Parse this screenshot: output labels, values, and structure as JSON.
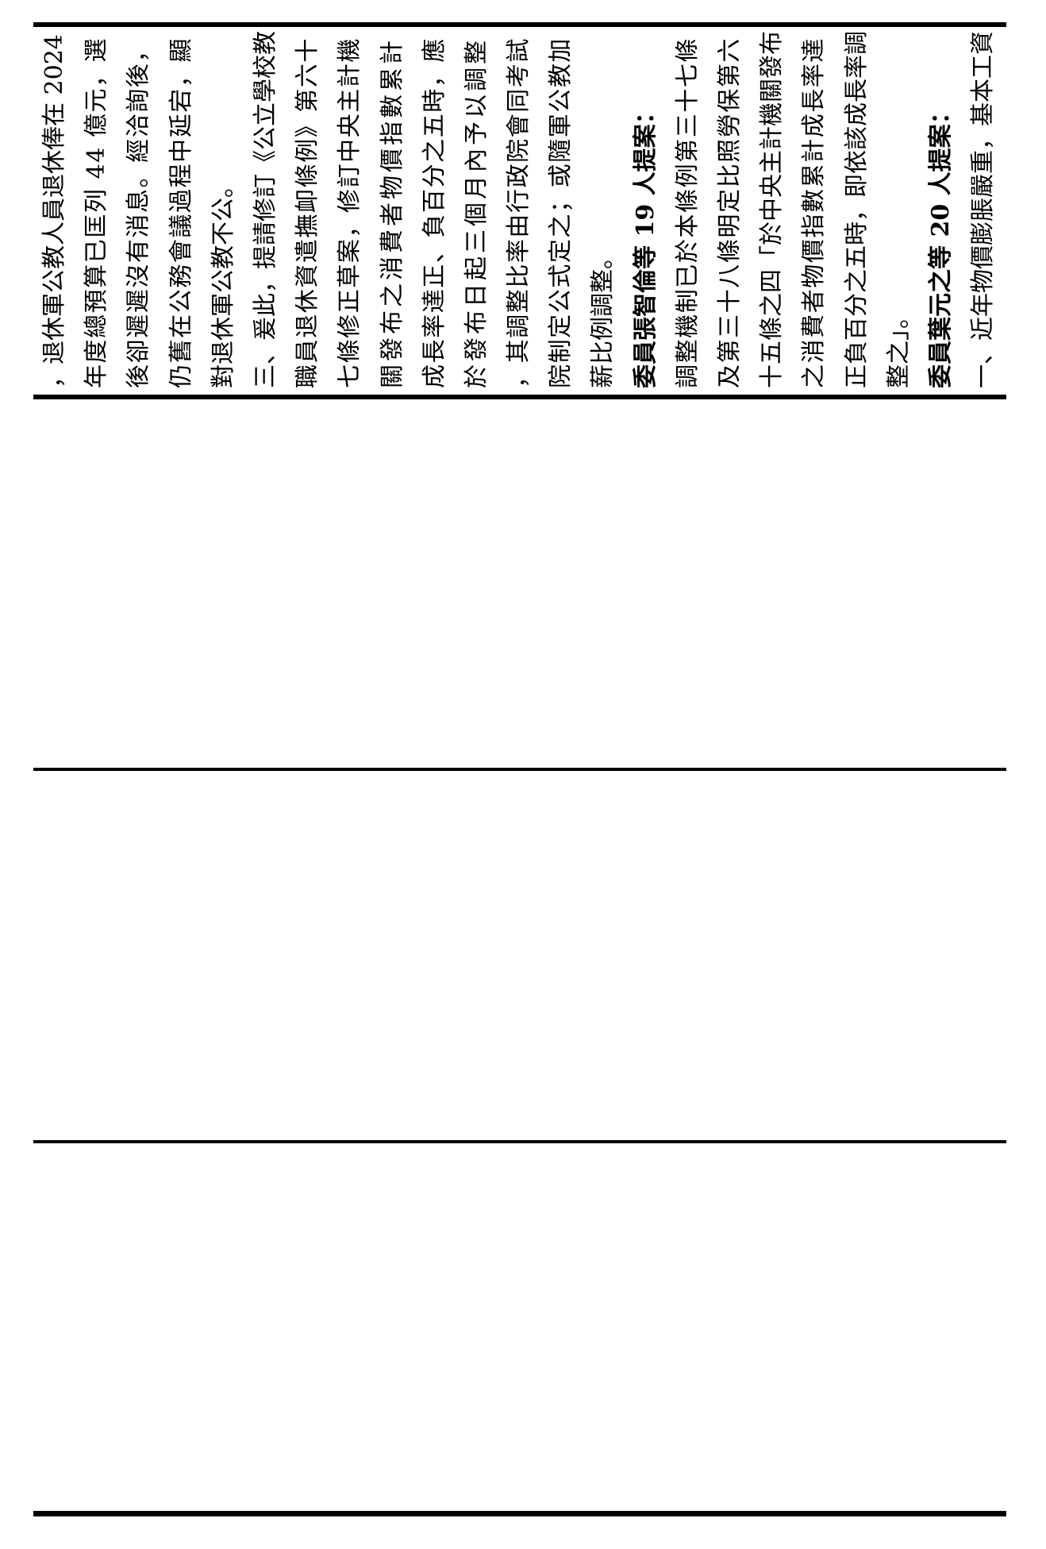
{
  "page": {
    "background_color": "#ffffff",
    "text_color": "#000000"
  },
  "document": {
    "lines": [
      {
        "text": "，退休軍公教人員退休俸在 2024",
        "bold": false
      },
      {
        "text": "年度總預算已匡列 44 億元，選",
        "bold": false
      },
      {
        "text": "後卻遲遲沒有消息。經洽詢後，",
        "bold": false
      },
      {
        "text": "仍舊在公務會議過程中延宕，顯",
        "bold": false
      },
      {
        "text": "對退休軍公教不公。",
        "bold": false
      },
      {
        "text": "三、爰此，提請修訂《公立學校教",
        "bold": false
      },
      {
        "text": "職員退休資遣撫卹條例》第六十",
        "bold": false
      },
      {
        "text": "七條修正草案，修訂中央主計機",
        "bold": false
      },
      {
        "text": "關發布之消費者物價指數累計",
        "bold": false
      },
      {
        "text": "成長率達正、負百分之五時，應",
        "bold": false
      },
      {
        "text": "於發布日起三個月內予以調整",
        "bold": false
      },
      {
        "text": "，其調整比率由行政院會同考試",
        "bold": false
      },
      {
        "text": "院制定公式定之；或隨軍公教加",
        "bold": false
      },
      {
        "text": "薪比例調整。",
        "bold": false
      },
      {
        "text": "委員張智倫等 19 人提案：",
        "bold": true
      },
      {
        "text": "調整機制已於本條例第三十七條",
        "bold": false
      },
      {
        "text": "及第三十八條明定比照勞保第六",
        "bold": false
      },
      {
        "text": "十五條之四「於中央主計機關發布",
        "bold": false
      },
      {
        "text": "之消費者物價指數累計成長率達",
        "bold": false
      },
      {
        "text": "正負百分之五時，即依該成長率調",
        "bold": false
      },
      {
        "text": "整之」。",
        "bold": false
      },
      {
        "text": "委員葉元之等 20 人提案：",
        "bold": true
      },
      {
        "text": "一、近年物價膨脹嚴重，基本工資",
        "bold": false
      }
    ]
  }
}
